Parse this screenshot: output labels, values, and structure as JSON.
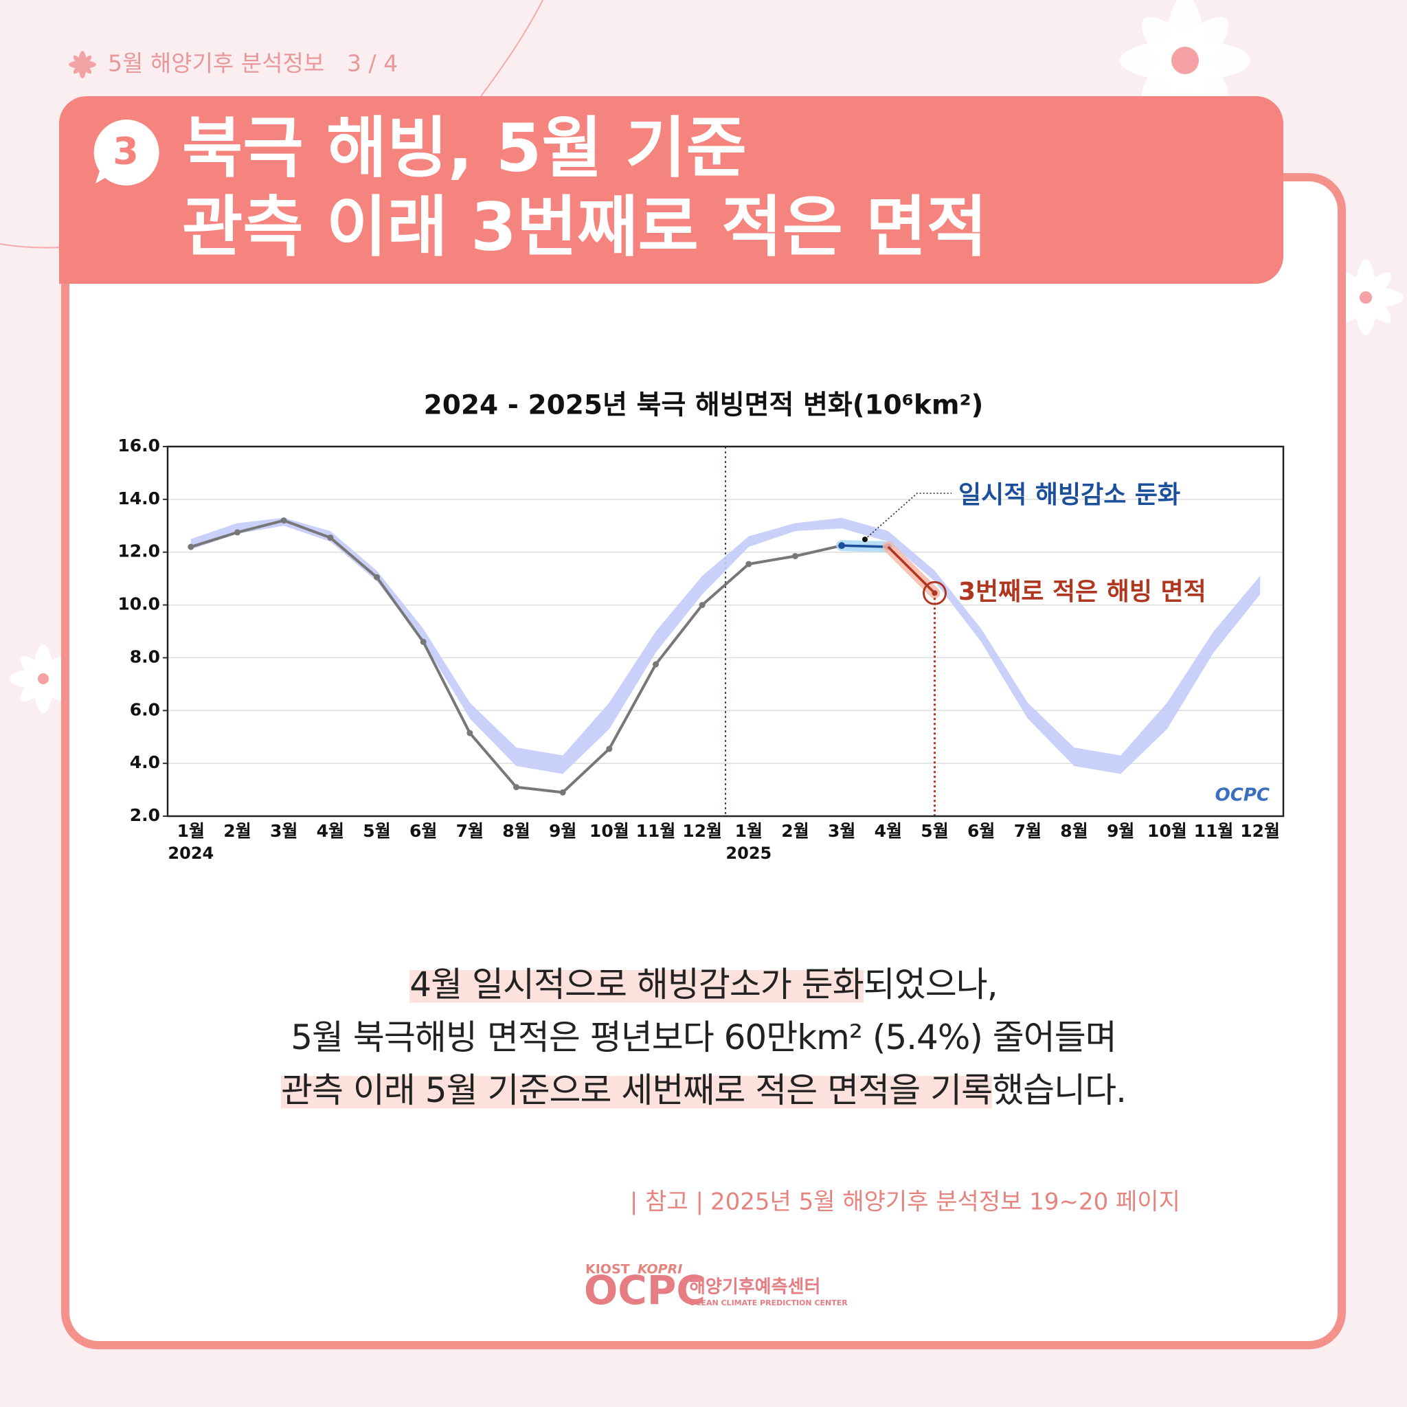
{
  "header": {
    "label": "5월 해양기후 분석정보",
    "page": "3 / 4"
  },
  "title": {
    "number": "3",
    "lines": [
      "북극 해빙, 5월 기준",
      "관측 이래 3번째로 적은 면적"
    ]
  },
  "chart_data": {
    "type": "line",
    "title": "2024 - 2025년 북극 해빙면적 변화(10⁶km²)",
    "categories": [
      "1월",
      "2월",
      "3월",
      "4월",
      "5월",
      "6월",
      "7월",
      "8월",
      "9월",
      "10월",
      "11월",
      "12월",
      "1월",
      "2월",
      "3월",
      "4월",
      "5월",
      "6월",
      "7월",
      "8월",
      "9월",
      "10월",
      "11월",
      "12월"
    ],
    "years": [
      {
        "label": "2024",
        "index": 0
      },
      {
        "label": "2025",
        "index": 12
      }
    ],
    "ylim": [
      2,
      16
    ],
    "yticks": [
      {
        "value": 2,
        "label": "2.0"
      },
      {
        "value": 4,
        "label": "4.0"
      },
      {
        "value": 6,
        "label": "6.0"
      },
      {
        "value": 8,
        "label": "8.0"
      },
      {
        "value": 10,
        "label": "10.0"
      },
      {
        "value": 12,
        "label": "12.0"
      },
      {
        "value": 14,
        "label": "14.0"
      },
      {
        "value": 16,
        "label": "16.0"
      }
    ],
    "grid": true,
    "series": [
      {
        "color": "#777777",
        "values": [
          12.2,
          12.75,
          13.2,
          12.55,
          11.05,
          8.6,
          5.15,
          3.1,
          2.9,
          4.55,
          7.75,
          10.0,
          11.55,
          11.85,
          12.25,
          12.2,
          10.45,
          null,
          null,
          null,
          null,
          null,
          null,
          null
        ]
      }
    ],
    "band": {
      "color": "#c3cbfa",
      "upper": [
        12.5,
        13.1,
        13.3,
        12.8,
        11.3,
        9.1,
        6.3,
        4.6,
        4.3,
        6.3,
        9.0,
        11.1,
        12.6,
        13.1,
        13.3,
        12.8,
        11.3,
        9.1,
        6.3,
        4.6,
        4.3,
        6.3,
        9.0,
        11.1
      ],
      "lower": [
        12.1,
        12.7,
        13.0,
        12.4,
        10.9,
        8.6,
        5.7,
        3.9,
        3.6,
        5.3,
        8.2,
        10.4,
        12.2,
        12.8,
        12.9,
        12.4,
        10.9,
        8.6,
        5.7,
        3.9,
        3.6,
        5.3,
        8.2,
        10.4
      ]
    },
    "annotations": [
      {
        "text": "일시적 해빙감소 둔화",
        "color": "#1b4f9c",
        "from": 14,
        "to": 15
      },
      {
        "text": "3번째로 적은 해빙 면적",
        "color": "#b0361f",
        "from": 15,
        "to": 16
      }
    ],
    "watermark": "OCPC"
  },
  "body": {
    "lines": [
      [
        {
          "text": "4월 일시적으로 해빙감소가 둔화",
          "highlight": true
        },
        {
          "text": "되었으나,",
          "highlight": false
        }
      ],
      [
        {
          "text": "5월 북극해빙 면적은 평년보다 60만km² (5.4%) 줄어들며",
          "highlight": false
        }
      ],
      [
        {
          "text": "관측 이래 5월 기준으로 세번째로 적은 면적을 기록",
          "highlight": true
        },
        {
          "text": "했습니다.",
          "highlight": false
        }
      ]
    ]
  },
  "reference": {
    "label": "| 참고 |",
    "text": "2025년 5월 해양기후 분석정보 19~20 페이지"
  },
  "footer": {
    "partners": [
      "KIOST",
      "KOPRI"
    ],
    "logo": "OCPC",
    "name": "해양기후예측센터",
    "name_en": "OCEAN CLIMATE PREDICTION CENTER"
  }
}
